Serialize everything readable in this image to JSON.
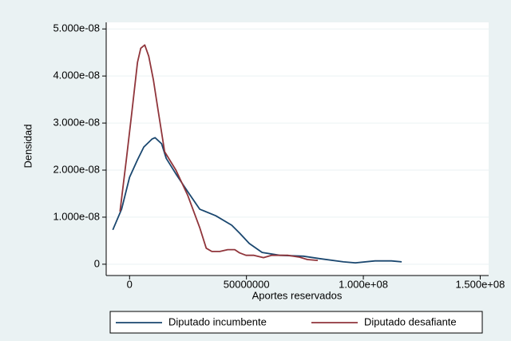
{
  "chart_data": {
    "type": "line",
    "x_label": "Aportes reservados",
    "y_label": "Densidad",
    "xlim": [
      -10000000,
      153600000
    ],
    "ylim": [
      -2.4e-09,
      5.14e-08
    ],
    "xticks": [
      0,
      50000000,
      {
        "value": 100000000,
        "label": "1.000e+08"
      },
      {
        "value": 150000000,
        "label": "1.500e+08"
      }
    ],
    "yticks": [
      0,
      {
        "value": 1e-08,
        "label": "1.000e-08"
      },
      {
        "value": 2e-08,
        "label": "2.000e-08"
      },
      {
        "value": 3e-08,
        "label": "3.000e-08"
      },
      {
        "value": 4e-08,
        "label": "4.000e-08"
      },
      {
        "value": 5e-08,
        "label": "5.000e-08"
      }
    ],
    "grid": true,
    "legend": "bottom",
    "series": [
      {
        "name": "Diputado incumbente",
        "color": "#1a476f",
        "x": [
          -7170000,
          -3400000,
          0,
          3400000,
          6100000,
          9600000,
          10900000,
          13700000,
          15700000,
          19800000,
          24900000,
          30000000,
          36900000,
          43700000,
          47100000,
          51200000,
          56700000,
          64200000,
          74400000,
          81200000,
          91500000,
          96600000,
          105000000,
          112000000,
          116400000
        ],
        "values": [
          7.3e-09,
          1.17e-08,
          1.85e-08,
          2.22e-08,
          2.49e-08,
          2.66e-08,
          2.69e-08,
          2.56e-08,
          2.25e-08,
          1.92e-08,
          1.54e-08,
          1.17e-08,
          1.03e-08,
          8.3e-09,
          6.6e-09,
          4.4e-09,
          2.5e-09,
          1.9e-09,
          1.7e-09,
          1.2e-09,
          5e-10,
          3e-10,
          7e-10,
          7e-10,
          5e-10
        ]
      },
      {
        "name": "Diputado desafiante",
        "color": "#90353b",
        "x": [
          -4100000,
          -1400000,
          1000000,
          3400000,
          4800000,
          6500000,
          8200000,
          10200000,
          12300000,
          15000000,
          19800000,
          24900000,
          30000000,
          32800000,
          35200000,
          38600000,
          42000000,
          45000000,
          47100000,
          49800000,
          53200000,
          57300000,
          60700000,
          67600000,
          72700000,
          76100000,
          80500000
        ],
        "values": [
          1.12e-08,
          2.22e-08,
          3.24e-08,
          4.29e-08,
          4.59e-08,
          4.66e-08,
          4.42e-08,
          3.92e-08,
          3.24e-08,
          2.39e-08,
          2e-08,
          1.46e-08,
          7.8e-09,
          3.4e-09,
          2.7e-09,
          2.7e-09,
          3.1e-09,
          3.1e-09,
          2.4e-09,
          1.9e-09,
          1.9e-09,
          1.4e-09,
          1.9e-09,
          1.9e-09,
          1.5e-09,
          1e-09,
          8e-10
        ]
      }
    ]
  }
}
